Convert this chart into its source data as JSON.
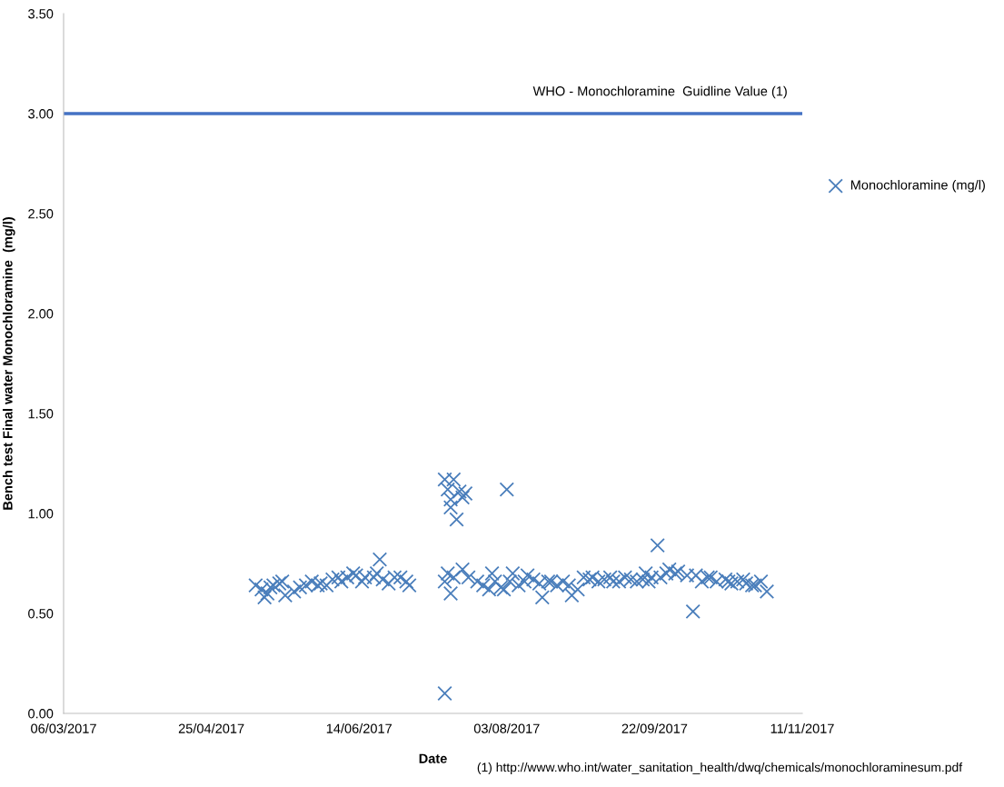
{
  "chart_data": {
    "type": "scatter",
    "xlabel": "Date",
    "ylabel": "Bench test Final water Monochloramine  (mg/l)",
    "x": [
      "2017-05-10",
      "2017-05-12",
      "2017-05-13",
      "2017-05-14",
      "2017-05-15",
      "2017-05-16",
      "2017-05-18",
      "2017-05-19",
      "2017-05-20",
      "2017-05-23",
      "2017-05-25",
      "2017-05-27",
      "2017-05-29",
      "2017-05-31",
      "2017-06-01",
      "2017-06-03",
      "2017-06-05",
      "2017-06-07",
      "2017-06-08",
      "2017-06-10",
      "2017-06-12",
      "2017-06-13",
      "2017-06-15",
      "2017-06-16",
      "2017-06-19",
      "2017-06-20",
      "2017-06-21",
      "2017-06-22",
      "2017-06-24",
      "2017-06-26",
      "2017-06-28",
      "2017-06-30",
      "2017-07-01",
      "2017-07-13",
      "2017-07-13",
      "2017-07-13",
      "2017-07-14",
      "2017-07-14",
      "2017-07-15",
      "2017-07-15",
      "2017-07-15",
      "2017-07-16",
      "2017-07-16",
      "2017-07-17",
      "2017-07-18",
      "2017-07-19",
      "2017-07-19",
      "2017-07-20",
      "2017-07-21",
      "2017-07-24",
      "2017-07-26",
      "2017-07-28",
      "2017-07-29",
      "2017-07-30",
      "2017-08-01",
      "2017-08-02",
      "2017-08-03",
      "2017-08-04",
      "2017-08-05",
      "2017-08-07",
      "2017-08-09",
      "2017-08-10",
      "2017-08-12",
      "2017-08-14",
      "2017-08-15",
      "2017-08-17",
      "2017-08-18",
      "2017-08-20",
      "2017-08-22",
      "2017-08-24",
      "2017-08-25",
      "2017-08-27",
      "2017-08-29",
      "2017-08-31",
      "2017-09-01",
      "2017-09-03",
      "2017-09-05",
      "2017-09-07",
      "2017-09-08",
      "2017-09-10",
      "2017-09-12",
      "2017-09-14",
      "2017-09-16",
      "2017-09-18",
      "2017-09-19",
      "2017-09-20",
      "2017-09-21",
      "2017-09-23",
      "2017-09-24",
      "2017-09-26",
      "2017-09-27",
      "2017-09-29",
      "2017-09-30",
      "2017-10-03",
      "2017-10-05",
      "2017-10-06",
      "2017-10-08",
      "2017-10-10",
      "2017-10-11",
      "2017-10-13",
      "2017-10-16",
      "2017-10-17",
      "2017-10-18",
      "2017-10-20",
      "2017-10-22",
      "2017-10-23",
      "2017-10-25",
      "2017-10-26",
      "2017-10-28",
      "2017-10-30"
    ],
    "series": [
      {
        "name": "Monochloramine (mg/l)",
        "color": "#4a7ebb",
        "values": [
          0.64,
          0.62,
          0.58,
          0.6,
          0.63,
          0.64,
          0.65,
          0.66,
          0.59,
          0.61,
          0.63,
          0.64,
          0.66,
          0.64,
          0.65,
          0.64,
          0.67,
          0.68,
          0.66,
          0.68,
          0.7,
          0.69,
          0.66,
          0.68,
          0.68,
          0.7,
          0.77,
          0.67,
          0.65,
          0.68,
          0.68,
          0.66,
          0.64,
          1.17,
          0.1,
          0.66,
          1.12,
          0.7,
          1.03,
          0.6,
          1.07,
          0.68,
          1.17,
          0.97,
          1.11,
          1.08,
          0.72,
          1.1,
          0.68,
          0.66,
          0.64,
          0.62,
          0.7,
          0.66,
          0.63,
          0.62,
          1.12,
          0.66,
          0.7,
          0.64,
          0.66,
          0.69,
          0.67,
          0.65,
          0.58,
          0.66,
          0.66,
          0.64,
          0.66,
          0.64,
          0.59,
          0.62,
          0.68,
          0.67,
          0.68,
          0.66,
          0.67,
          0.68,
          0.66,
          0.66,
          0.68,
          0.67,
          0.66,
          0.67,
          0.7,
          0.66,
          0.68,
          0.84,
          0.68,
          0.7,
          0.72,
          0.7,
          0.71,
          0.69,
          0.51,
          0.69,
          0.66,
          0.68,
          0.68,
          0.66,
          0.67,
          0.66,
          0.65,
          0.66,
          0.67,
          0.65,
          0.64,
          0.64,
          0.66,
          0.61
        ]
      }
    ],
    "marker": "cross",
    "legend": "right",
    "grid": false,
    "xlim": [
      "2017-03-06",
      "2017-11-11"
    ],
    "xticks": [
      {
        "value": "2017-03-06",
        "label": "06/03/2017"
      },
      {
        "value": "2017-04-25",
        "label": "25/04/2017"
      },
      {
        "value": "2017-06-14",
        "label": "14/06/2017"
      },
      {
        "value": "2017-08-03",
        "label": "03/08/2017"
      },
      {
        "value": "2017-09-22",
        "label": "22/09/2017"
      },
      {
        "value": "2017-11-11",
        "label": "11/11/2017"
      }
    ],
    "ylim": [
      0,
      3.5
    ],
    "yticks": [
      {
        "value": 0,
        "label": "0.00"
      },
      {
        "value": 0.5,
        "label": "0.50"
      },
      {
        "value": 1,
        "label": "1.00"
      },
      {
        "value": 1.5,
        "label": "1.50"
      },
      {
        "value": 2,
        "label": "2.00"
      },
      {
        "value": 2.5,
        "label": "2.50"
      },
      {
        "value": 3,
        "label": "3.00"
      },
      {
        "value": 3.5,
        "label": "3.50"
      }
    ],
    "ref_lines": [
      {
        "axis": "y",
        "value": 3,
        "label": "WHO - Monochloramine  Guidline Value (1)",
        "color": "#4472c4",
        "line_style": "solid"
      }
    ],
    "annotations": [
      "(1) http://www.who.int/water_sanitation_health/dwq/chemicals/monochloraminesum.pdf"
    ]
  }
}
